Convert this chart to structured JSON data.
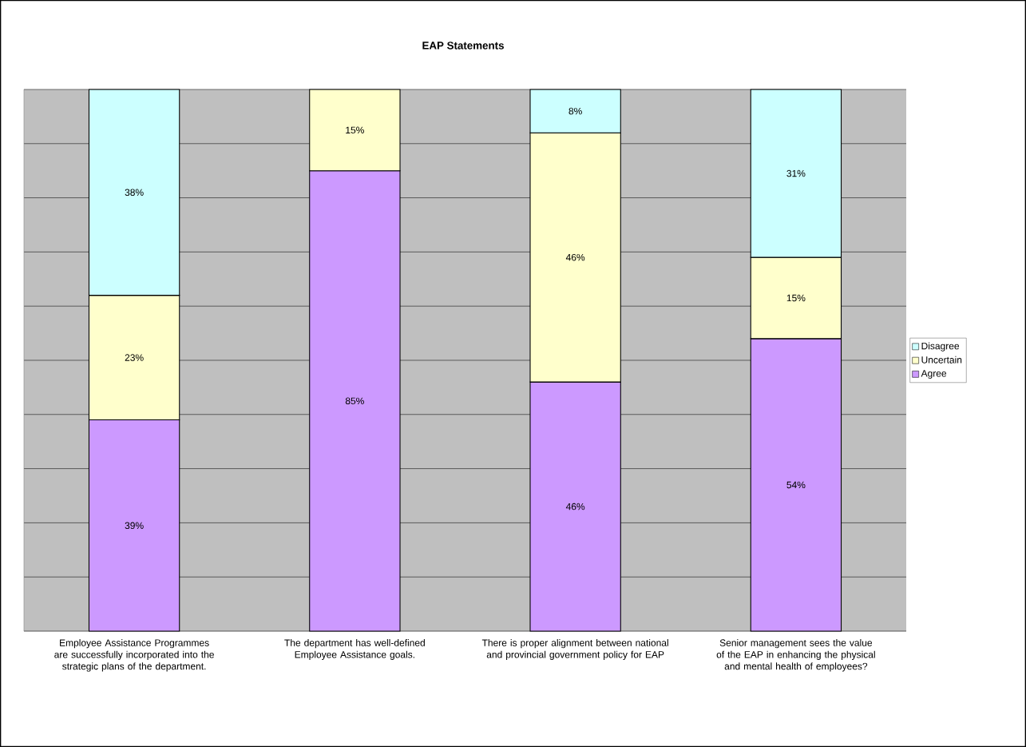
{
  "chart_data": {
    "type": "bar",
    "title": "EAP Statements",
    "stacked": true,
    "categories": [
      "Employee Assistance Programmes are successfully incorporated into the strategic plans of the department.",
      "The department has well-defined Employee Assistance goals.",
      "There is proper alignment between national and provincial government policy for EAP",
      "Senior management sees the value of the EAP in enhancing the physical and mental health of employees?"
    ],
    "series": [
      {
        "name": "Agree",
        "color": "#cc99ff",
        "values": [
          39,
          85,
          46,
          54
        ],
        "value_labels": [
          "39%",
          "85%",
          "46%",
          "54%"
        ]
      },
      {
        "name": "Uncertain",
        "color": "#ffffcc",
        "values": [
          23,
          15,
          46,
          15
        ],
        "value_labels": [
          "23%",
          "15%",
          "46%",
          "15%"
        ]
      },
      {
        "name": "Disagree",
        "color": "#ccffff",
        "values": [
          38,
          null,
          8,
          31
        ],
        "value_labels": [
          "38%",
          null,
          "8%",
          "31%"
        ]
      }
    ],
    "tick_labels": "x",
    "grid": "y",
    "legend": "right"
  }
}
